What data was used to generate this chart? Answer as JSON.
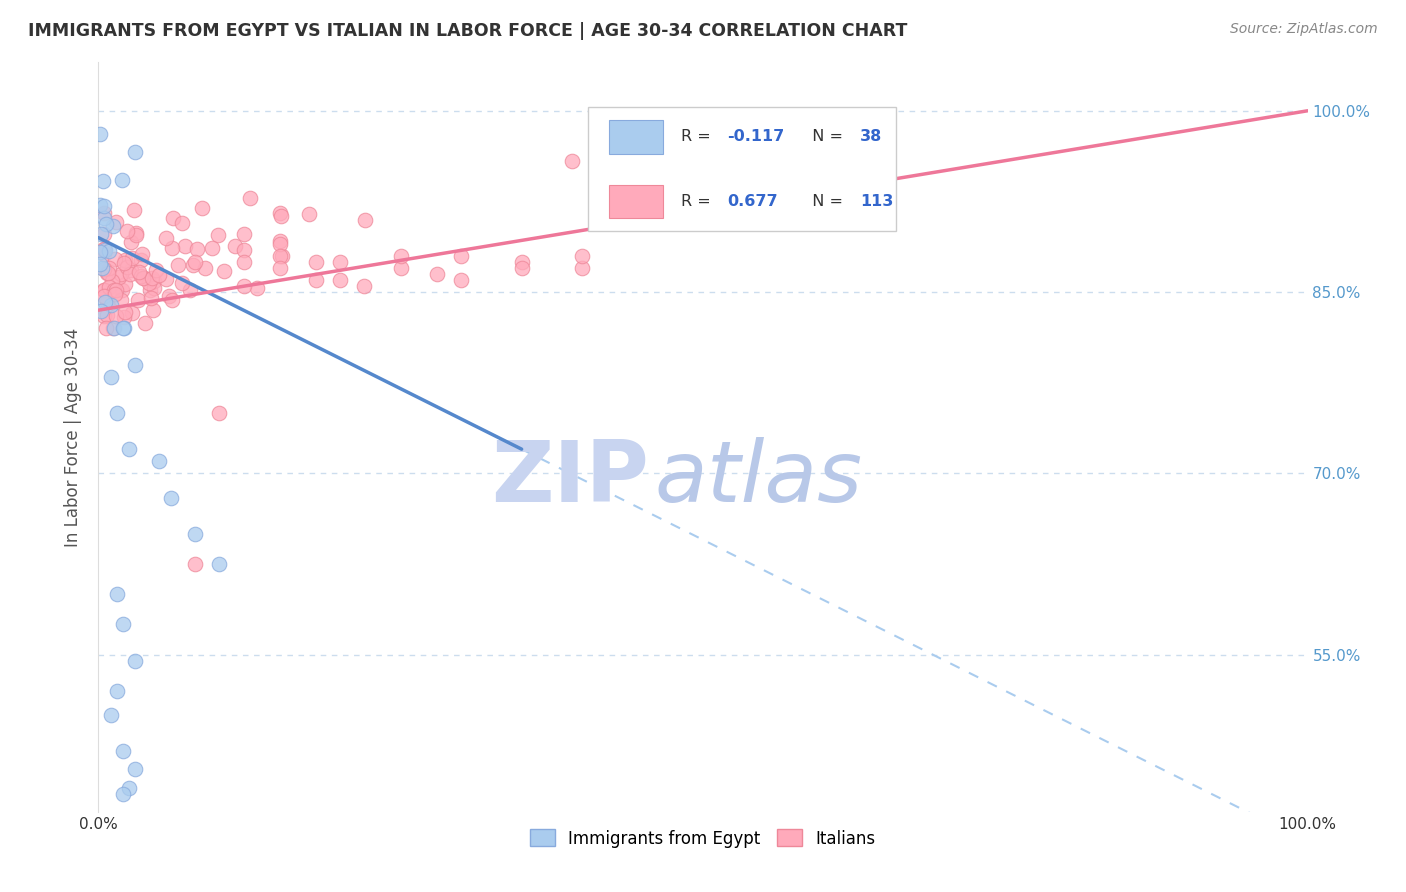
{
  "title": "IMMIGRANTS FROM EGYPT VS ITALIAN IN LABOR FORCE | AGE 30-34 CORRELATION CHART",
  "source": "Source: ZipAtlas.com",
  "ylabel": "In Labor Force | Age 30-34",
  "xlim": [
    0.0,
    1.0
  ],
  "ylim": [
    0.42,
    1.04
  ],
  "yticks": [
    0.55,
    0.7,
    0.85,
    1.0
  ],
  "ytick_labels": [
    "55.0%",
    "70.0%",
    "85.0%",
    "100.0%"
  ],
  "egypt_R": -0.117,
  "egypt_N": 38,
  "italy_R": 0.677,
  "italy_N": 113,
  "egypt_line_color": "#5588cc",
  "egypt_scatter_fill": "#aaccee",
  "egypt_scatter_edge": "#88aadd",
  "italy_line_color": "#ee7799",
  "italy_scatter_fill": "#ffaabb",
  "italy_scatter_edge": "#ee8899",
  "dash_line_color": "#aaccee",
  "grid_color": "#ccddee",
  "watermark_zip_color": "#d0d8f0",
  "watermark_atlas_color": "#c8d4ee",
  "title_color": "#333333",
  "source_color": "#888888",
  "ytick_color": "#5599cc",
  "xtick_color": "#333333",
  "legend_box_edge": "#cccccc",
  "r_label_color": "#333333",
  "n_val_color": "#3366cc"
}
